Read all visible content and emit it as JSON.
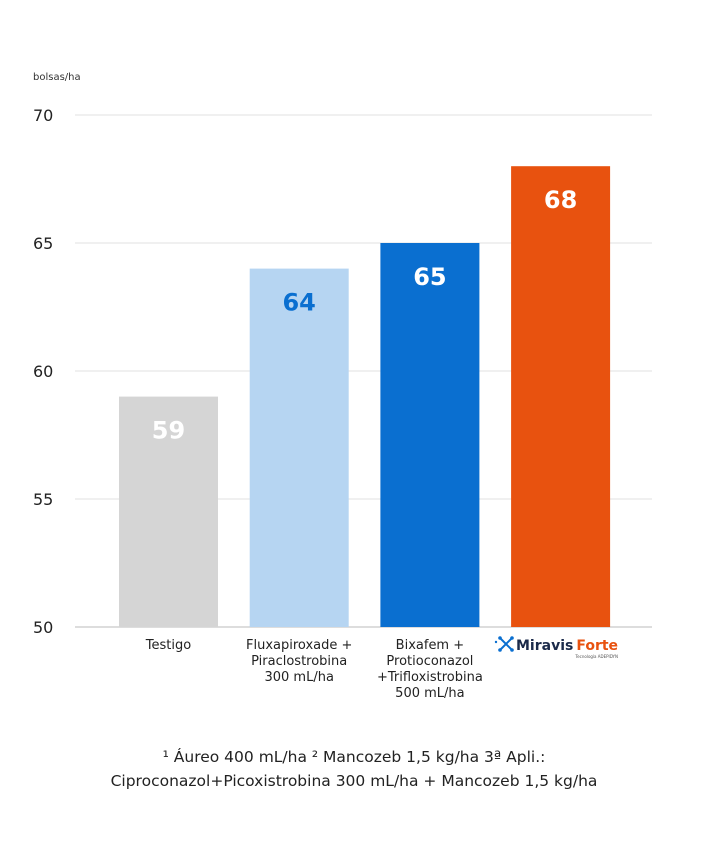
{
  "chart_data": {
    "type": "bar",
    "ylabel": "bolsas/ha",
    "ylim": [
      50,
      70
    ],
    "yticks": [
      50,
      55,
      60,
      65,
      70
    ],
    "grid": true,
    "categories": [
      [
        "Testigo"
      ],
      [
        "Fluxapiroxade +",
        "Piraclostrobina",
        "300 mL/ha"
      ],
      [
        "Bixafem +",
        "Protioconazol",
        "+Trifloxistrobina",
        "500 mL/ha"
      ],
      []
    ],
    "values": [
      59,
      64,
      65,
      68
    ],
    "colors": [
      "#d5d5d5",
      "#b6d5f2",
      "#0a6fd0",
      "#e8520f"
    ],
    "label_colors": [
      "#ffffff",
      "#0a6fd0",
      "#ffffff",
      "#ffffff"
    ]
  },
  "logo": {
    "brand_a": "Miravis",
    "brand_b": "Forte",
    "tagline": "Tecnología ADEPIDYN",
    "icon": "molecule-icon",
    "color_dark": "#1b2a4a",
    "color_accent": "#e8520f"
  },
  "footnote": {
    "line1": "¹ Áureo 400 mL/ha ² Mancozeb 1,5 kg/ha 3ª Apli.:",
    "line2": "Ciproconazol+Picoxistrobina 300 mL/ha + Mancozeb 1,5 kg/ha"
  }
}
